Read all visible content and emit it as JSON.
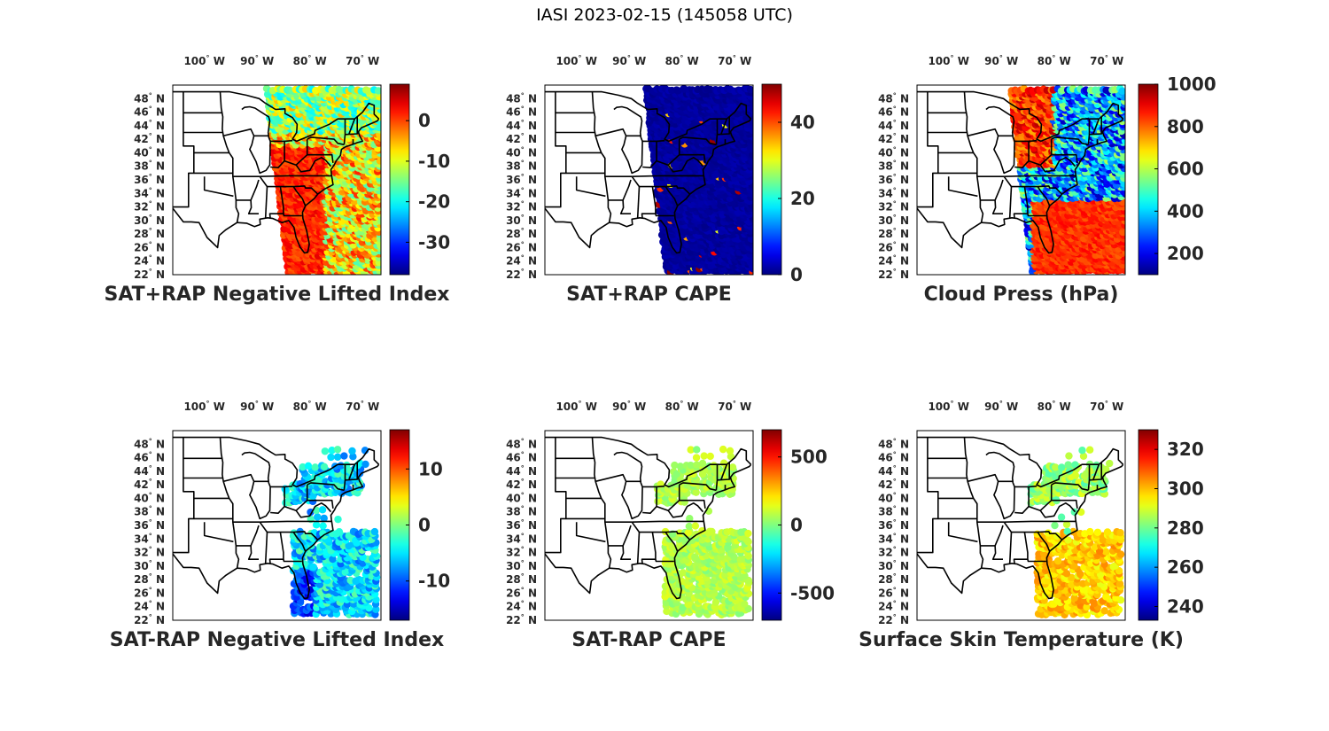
{
  "title": "IASI 2023-02-15 (145058 UTC)",
  "lon_ticks": [
    "100",
    "90",
    "80",
    "70"
  ],
  "lon_unit": "W",
  "lat_ticks": [
    "48",
    "46",
    "44",
    "42",
    "40",
    "38",
    "36",
    "34",
    "32",
    "30",
    "28",
    "26",
    "24",
    "22"
  ],
  "lat_unit": "N",
  "degree_symbol": "°",
  "panels": [
    {
      "name": "sat-rap-lifted-index",
      "title": "SAT+RAP Negative Lifted Index",
      "colorbar": {
        "min": -38,
        "max": 9,
        "ticks": [
          "0",
          "-10",
          "-20",
          "-30"
        ],
        "tick_values": [
          0,
          -10,
          -20,
          -30
        ]
      },
      "swath": "full-right",
      "dominant": "orange-yellow"
    },
    {
      "name": "sat-rap-cape",
      "title": "SAT+RAP CAPE",
      "colorbar": {
        "min": 0,
        "max": 50,
        "ticks": [
          "40",
          "20",
          "0"
        ],
        "tick_values": [
          40,
          20,
          0
        ]
      },
      "swath": "strip-east",
      "dominant": "dark-blue"
    },
    {
      "name": "cloud-press",
      "title": "Cloud Press (hPa)",
      "colorbar": {
        "min": 100,
        "max": 1000,
        "ticks": [
          "1000",
          "800",
          "600",
          "400",
          "200"
        ],
        "tick_values": [
          1000,
          800,
          600,
          400,
          200
        ]
      },
      "swath": "full-right",
      "dominant": "blue-orange"
    },
    {
      "name": "sat-minus-rap-lifted-index",
      "title": "SAT-RAP Negative Lifted Index",
      "colorbar": {
        "min": -17,
        "max": 17,
        "ticks": [
          "10",
          "0",
          "-10"
        ],
        "tick_values": [
          10,
          0,
          -10
        ]
      },
      "swath": "scattered",
      "dominant": "blue-cyan"
    },
    {
      "name": "sat-minus-rap-cape",
      "title": "SAT-RAP CAPE",
      "colorbar": {
        "min": -700,
        "max": 700,
        "ticks": [
          "500",
          "0",
          "-500"
        ],
        "tick_values": [
          500,
          0,
          -500
        ]
      },
      "swath": "scattered",
      "dominant": "light-green"
    },
    {
      "name": "surface-skin-temperature",
      "title": "Surface Skin Temperature (K)",
      "colorbar": {
        "min": 233,
        "max": 330,
        "ticks": [
          "320",
          "300",
          "280",
          "260",
          "240"
        ],
        "tick_values": [
          320,
          300,
          280,
          260,
          240
        ]
      },
      "swath": "scattered",
      "dominant": "yellow"
    }
  ]
}
